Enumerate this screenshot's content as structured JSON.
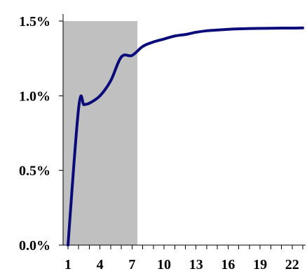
{
  "chart_data": {
    "type": "line",
    "title": "",
    "xlabel": "",
    "ylabel": "",
    "xlim": [
      1,
      23
    ],
    "ylim": [
      0,
      1.5
    ],
    "y_ticks": [
      0,
      0.5,
      1.0,
      1.5
    ],
    "y_tick_labels": [
      "0.0%",
      "0.5%",
      "1.0%",
      "1.5%"
    ],
    "x_ticks": [
      1,
      4,
      7,
      10,
      13,
      16,
      19,
      22
    ],
    "x_tick_labels": [
      "1",
      "4",
      "7",
      "10",
      "13",
      "16",
      "19",
      "22"
    ],
    "grid": false,
    "legend": "none",
    "shaded_region": {
      "x_start": 1,
      "x_end": 7.5,
      "color": "#c0c0c0"
    },
    "series": [
      {
        "color": "#0a0a7a",
        "x": [
          1,
          2,
          2.5,
          3,
          4,
          5,
          6,
          7,
          8,
          9,
          10,
          11,
          12,
          13,
          14,
          15,
          16,
          17,
          18,
          19,
          20,
          21,
          22,
          23
        ],
        "values": [
          0,
          0.92,
          0.94,
          0.95,
          1.0,
          1.1,
          1.26,
          1.27,
          1.33,
          1.36,
          1.38,
          1.4,
          1.41,
          1.425,
          1.435,
          1.44,
          1.445,
          1.448,
          1.45,
          1.451,
          1.452,
          1.453,
          1.453,
          1.454
        ]
      }
    ]
  }
}
